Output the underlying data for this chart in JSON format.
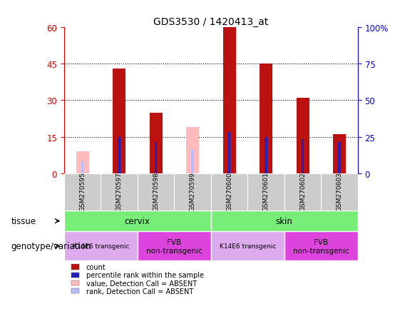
{
  "title": "GDS3530 / 1420413_at",
  "samples": [
    "GSM270595",
    "GSM270597",
    "GSM270598",
    "GSM270599",
    "GSM270600",
    "GSM270601",
    "GSM270602",
    "GSM270603"
  ],
  "count_values": [
    null,
    43,
    25,
    null,
    60,
    45,
    31,
    16
  ],
  "rank_values": [
    null,
    15,
    13,
    null,
    17,
    15,
    14,
    13
  ],
  "absent_value_values": [
    9,
    null,
    null,
    19,
    null,
    null,
    null,
    null
  ],
  "absent_rank_values": [
    5,
    null,
    null,
    10,
    null,
    null,
    null,
    null
  ],
  "ylim_left": [
    0,
    60
  ],
  "ylim_right": [
    0,
    100
  ],
  "yticks_left": [
    0,
    15,
    30,
    45,
    60
  ],
  "yticks_right": [
    0,
    25,
    50,
    75,
    100
  ],
  "color_count": "#bb1111",
  "color_rank": "#2222bb",
  "color_absent_value": "#ffbbbb",
  "color_absent_rank": "#bbbbff",
  "tissue_cervix_label": "cervix",
  "tissue_skin_label": "skin",
  "tissue_color": "#77ee77",
  "genotype_k14_label": "K14E6 transgenic",
  "genotype_fvb_label": "FVB\nnon-transgenic",
  "genotype_color_k14": "#ddaaee",
  "genotype_color_fvb": "#dd44dd",
  "axis_color_left": "#cc0000",
  "axis_color_right": "#0000cc",
  "bar_width": 0.35,
  "rank_bar_width": 0.07
}
